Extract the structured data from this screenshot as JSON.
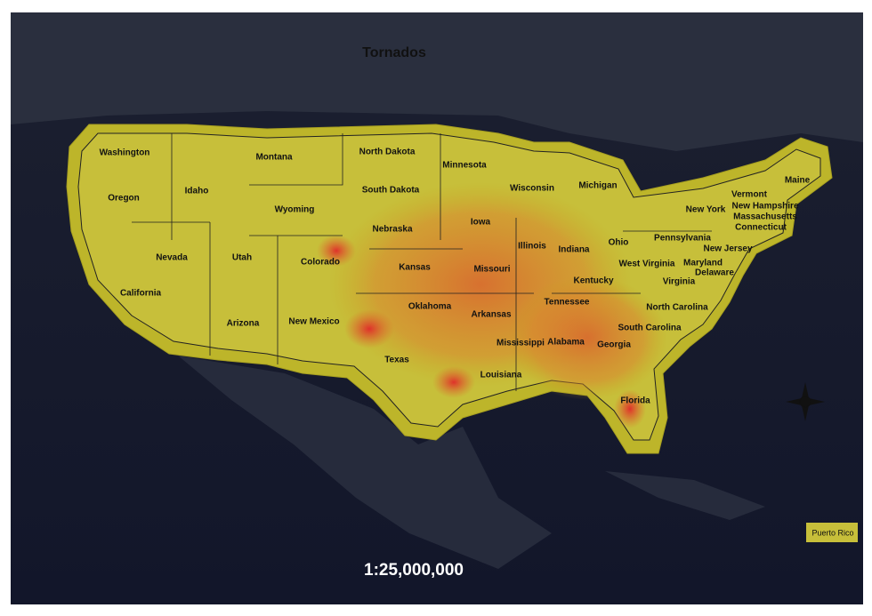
{
  "title": "Tornados",
  "scale": "1:25,000,000",
  "inset_label": "Puerto Rico",
  "states": [
    "Washington",
    "Montana",
    "North Dakota",
    "Minnesota",
    "Oregon",
    "Idaho",
    "South Dakota",
    "Wisconsin",
    "Michigan",
    "Wyoming",
    "Iowa",
    "Nebraska",
    "New York",
    "Vermont",
    "New Hampshire",
    "Maine",
    "Massachusetts",
    "Connecticut",
    "New Jersey",
    "Pennsylvania",
    "Nevada",
    "Utah",
    "Colorado",
    "Kansas",
    "Missouri",
    "Illinois",
    "Indiana",
    "Ohio",
    "West Virginia",
    "Maryland",
    "Delaware",
    "Virginia",
    "Kentucky",
    "California",
    "Arizona",
    "New Mexico",
    "Oklahoma",
    "Arkansas",
    "Tennessee",
    "North Carolina",
    "South Carolina",
    "Georgia",
    "Alabama",
    "Mississippi",
    "Louisiana",
    "Texas",
    "Florida"
  ]
}
